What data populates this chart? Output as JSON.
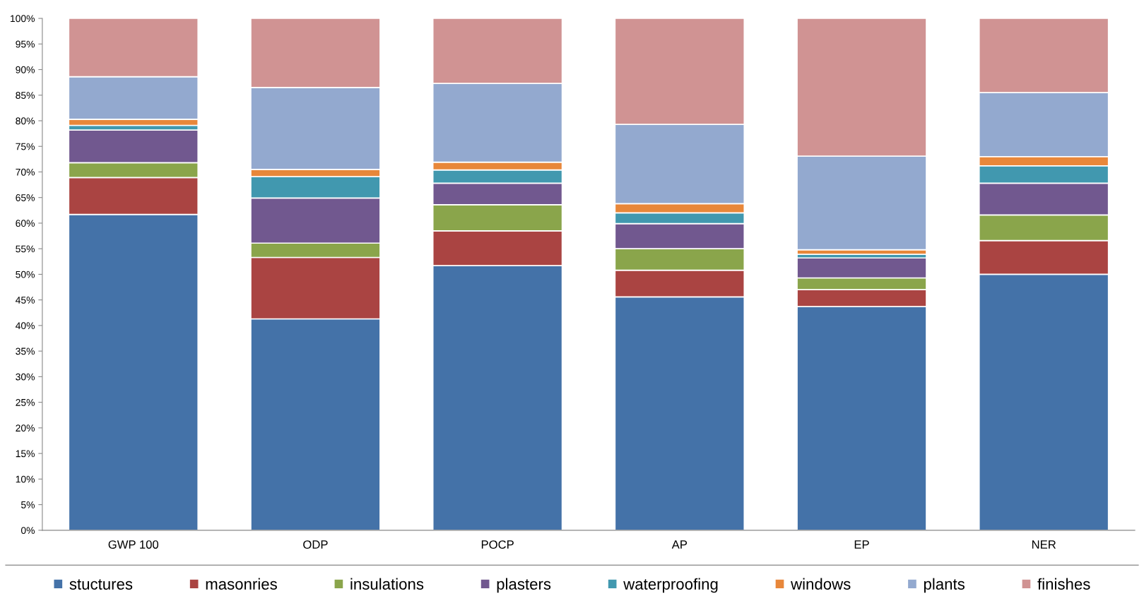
{
  "chart_data": {
    "type": "bar",
    "stacked": true,
    "categories": [
      "GWP 100",
      "ODP",
      "POCP",
      "AP",
      "EP",
      "NER"
    ],
    "series": [
      {
        "name": "stuctures",
        "color": "#4472a8",
        "values": [
          61.7,
          41.3,
          51.7,
          45.6,
          43.7,
          50.0
        ]
      },
      {
        "name": "masonries",
        "color": "#aa4442",
        "values": [
          7.2,
          12.0,
          6.8,
          5.2,
          3.3,
          6.6
        ]
      },
      {
        "name": "insulations",
        "color": "#8aa54b",
        "values": [
          2.9,
          2.8,
          5.1,
          4.2,
          2.3,
          5.0
        ]
      },
      {
        "name": "plasters",
        "color": "#71588f",
        "values": [
          6.4,
          8.8,
          4.2,
          4.9,
          3.9,
          6.2
        ]
      },
      {
        "name": "waterproofing",
        "color": "#4198af",
        "values": [
          0.9,
          4.2,
          2.6,
          2.1,
          0.7,
          3.4
        ]
      },
      {
        "name": "windows",
        "color": "#e8873a",
        "values": [
          1.2,
          1.4,
          1.5,
          1.8,
          0.9,
          1.8
        ]
      },
      {
        "name": "plants",
        "color": "#93a9cf",
        "values": [
          8.3,
          16.0,
          15.4,
          15.5,
          18.3,
          12.5
        ]
      },
      {
        "name": "finishes",
        "color": "#d09393",
        "values": [
          11.4,
          13.5,
          12.7,
          20.7,
          26.9,
          14.5
        ]
      }
    ],
    "ylim": [
      0,
      100
    ],
    "yticks": [
      {
        "value": 0,
        "label": "0%"
      },
      {
        "value": 5,
        "label": "5%"
      },
      {
        "value": 10,
        "label": "10%"
      },
      {
        "value": 15,
        "label": "15%"
      },
      {
        "value": 20,
        "label": "20%"
      },
      {
        "value": 25,
        "label": "25%"
      },
      {
        "value": 30,
        "label": "30%"
      },
      {
        "value": 35,
        "label": "35%"
      },
      {
        "value": 40,
        "label": "40%"
      },
      {
        "value": 45,
        "label": "45%"
      },
      {
        "value": 50,
        "label": "50%"
      },
      {
        "value": 55,
        "label": "55%"
      },
      {
        "value": 60,
        "label": "60%"
      },
      {
        "value": 65,
        "label": "65%"
      },
      {
        "value": 70,
        "label": "70%"
      },
      {
        "value": 75,
        "label": "75%"
      },
      {
        "value": 80,
        "label": "80%"
      },
      {
        "value": 85,
        "label": "85%"
      },
      {
        "value": 90,
        "label": "90%"
      },
      {
        "value": 95,
        "label": "95%"
      },
      {
        "value": 100,
        "label": "100%"
      }
    ],
    "grid": false,
    "legend": "bottom"
  }
}
